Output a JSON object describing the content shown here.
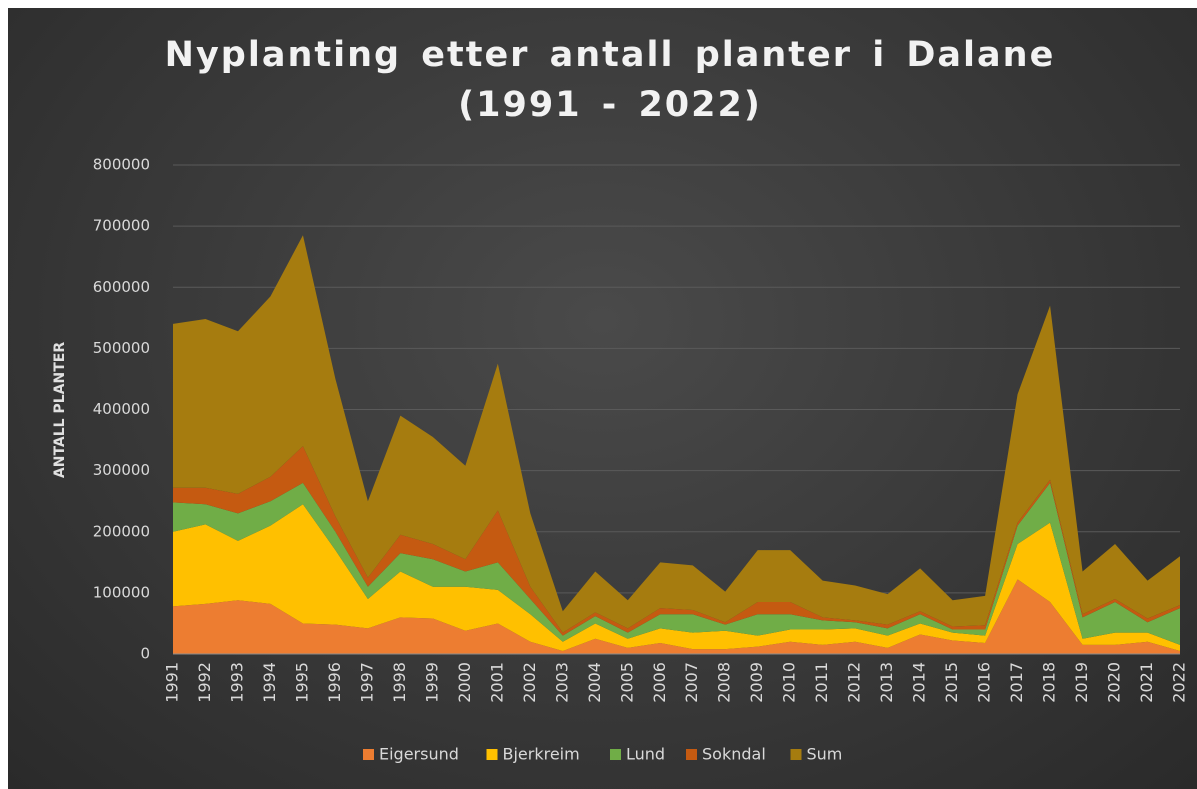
{
  "chart_data": {
    "type": "stacked_area",
    "title": "Nyplanting etter antall planter i Dalane (1991 - 2022)",
    "ylabel": "ANTALL PLANTER",
    "categories": [
      "1991",
      "1992",
      "1993",
      "1994",
      "1995",
      "1996",
      "1997",
      "1998",
      "1999",
      "2000",
      "2001",
      "2002",
      "2003",
      "2004",
      "2005",
      "2006",
      "2007",
      "2008",
      "2009",
      "2010",
      "2011",
      "2012",
      "2013",
      "2014",
      "2015",
      "2016",
      "2017",
      "2018",
      "2019",
      "2020",
      "2021",
      "2022"
    ],
    "series": [
      {
        "name": "Eigersund",
        "color": "#ed7d31",
        "values": [
          78000,
          82000,
          88000,
          82000,
          50000,
          48000,
          42000,
          60000,
          58000,
          38000,
          50000,
          20000,
          5000,
          25000,
          10000,
          18000,
          8000,
          8000,
          12000,
          20000,
          15000,
          20000,
          10000,
          32000,
          22000,
          18000,
          122000,
          85000,
          15000,
          15000,
          20000,
          5000
        ]
      },
      {
        "name": "Bjerkreim",
        "color": "#ffc000",
        "values": [
          122000,
          130000,
          97000,
          128000,
          195000,
          122000,
          48000,
          75000,
          52000,
          72000,
          55000,
          45000,
          15000,
          25000,
          15000,
          24000,
          27000,
          30000,
          18000,
          20000,
          25000,
          22000,
          20000,
          18000,
          13000,
          12000,
          58000,
          130000,
          10000,
          20000,
          15000,
          10000
        ]
      },
      {
        "name": "Lund",
        "color": "#70ad47",
        "values": [
          48000,
          33000,
          45000,
          40000,
          35000,
          30000,
          20000,
          30000,
          45000,
          25000,
          45000,
          25000,
          10000,
          12000,
          10000,
          23000,
          30000,
          10000,
          35000,
          25000,
          15000,
          10000,
          12000,
          15000,
          5000,
          10000,
          30000,
          65000,
          35000,
          50000,
          17000,
          60000
        ]
      },
      {
        "name": "Sokndal",
        "color": "#c55a11",
        "values": [
          24000,
          27000,
          32000,
          40000,
          60000,
          25000,
          15000,
          30000,
          25000,
          20000,
          85000,
          20000,
          5000,
          6000,
          7000,
          10000,
          7000,
          4000,
          20000,
          20000,
          5000,
          3000,
          6000,
          5000,
          5000,
          7000,
          5000,
          5000,
          5000,
          5000,
          6000,
          5000
        ]
      },
      {
        "name": "Sum",
        "color": "#a67c0f",
        "values": [
          268000,
          276000,
          266000,
          295000,
          345000,
          225000,
          125000,
          195000,
          175000,
          153000,
          240000,
          120000,
          35000,
          67000,
          46000,
          75000,
          73000,
          50000,
          85000,
          85000,
          60000,
          57000,
          50000,
          70000,
          43000,
          48000,
          210000,
          285000,
          70000,
          90000,
          62000,
          80000
        ]
      }
    ],
    "ylim": [
      0,
      800000
    ],
    "yticks": [
      0,
      100000,
      200000,
      300000,
      400000,
      500000,
      600000,
      700000,
      800000
    ],
    "grid": true,
    "legend": "bottom"
  }
}
